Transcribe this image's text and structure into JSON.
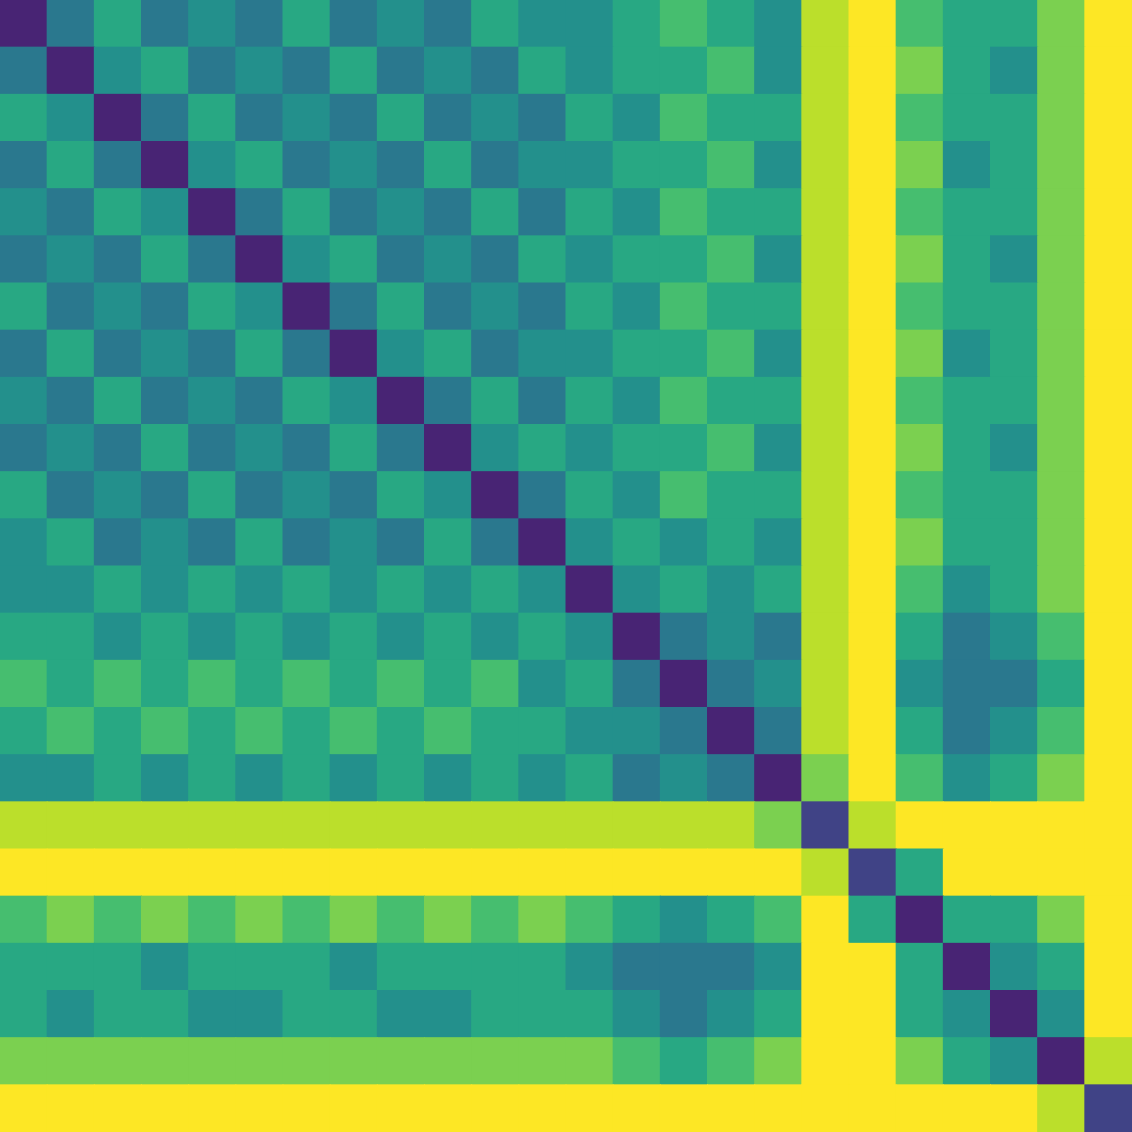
{
  "chart_data": {
    "type": "heatmap",
    "tick_labels": false,
    "xlim": [
      0,
      24
    ],
    "ylim": [
      0,
      24
    ],
    "zlim": [
      0,
      1
    ],
    "cells": [
      [
        0.1,
        0.4,
        0.6,
        0.4,
        0.5,
        0.4,
        0.6,
        0.4,
        0.5,
        0.4,
        0.6,
        0.5,
        0.5,
        0.6,
        0.7,
        0.6,
        0.5,
        0.9,
        1,
        0.7,
        0.6,
        0.6,
        0.8,
        1
      ],
      [
        0.4,
        0.1,
        0.5,
        0.6,
        0.4,
        0.5,
        0.4,
        0.6,
        0.4,
        0.5,
        0.4,
        0.6,
        0.5,
        0.6,
        0.6,
        0.7,
        0.5,
        0.9,
        1,
        0.8,
        0.6,
        0.5,
        0.8,
        1
      ],
      [
        0.6,
        0.5,
        0.1,
        0.4,
        0.6,
        0.4,
        0.5,
        0.4,
        0.6,
        0.4,
        0.5,
        0.4,
        0.6,
        0.5,
        0.7,
        0.6,
        0.6,
        0.9,
        1,
        0.7,
        0.6,
        0.6,
        0.8,
        1
      ],
      [
        0.4,
        0.6,
        0.4,
        0.1,
        0.5,
        0.6,
        0.4,
        0.5,
        0.4,
        0.6,
        0.4,
        0.5,
        0.5,
        0.6,
        0.6,
        0.7,
        0.5,
        0.9,
        1,
        0.8,
        0.5,
        0.6,
        0.8,
        1
      ],
      [
        0.5,
        0.4,
        0.6,
        0.5,
        0.1,
        0.4,
        0.6,
        0.4,
        0.5,
        0.4,
        0.6,
        0.4,
        0.6,
        0.5,
        0.7,
        0.6,
        0.6,
        0.9,
        1,
        0.7,
        0.6,
        0.6,
        0.8,
        1
      ],
      [
        0.4,
        0.5,
        0.4,
        0.6,
        0.4,
        0.1,
        0.5,
        0.6,
        0.4,
        0.5,
        0.4,
        0.6,
        0.5,
        0.6,
        0.6,
        0.7,
        0.5,
        0.9,
        1,
        0.8,
        0.6,
        0.5,
        0.8,
        1
      ],
      [
        0.6,
        0.4,
        0.5,
        0.4,
        0.6,
        0.5,
        0.1,
        0.4,
        0.6,
        0.4,
        0.5,
        0.4,
        0.6,
        0.5,
        0.7,
        0.6,
        0.6,
        0.9,
        1,
        0.7,
        0.6,
        0.6,
        0.8,
        1
      ],
      [
        0.4,
        0.6,
        0.4,
        0.5,
        0.4,
        0.6,
        0.4,
        0.1,
        0.5,
        0.6,
        0.4,
        0.5,
        0.5,
        0.6,
        0.6,
        0.7,
        0.5,
        0.9,
        1,
        0.8,
        0.5,
        0.6,
        0.8,
        1
      ],
      [
        0.5,
        0.4,
        0.6,
        0.4,
        0.5,
        0.4,
        0.6,
        0.5,
        0.1,
        0.4,
        0.6,
        0.4,
        0.6,
        0.5,
        0.7,
        0.6,
        0.6,
        0.9,
        1,
        0.7,
        0.6,
        0.6,
        0.8,
        1
      ],
      [
        0.4,
        0.5,
        0.4,
        0.6,
        0.4,
        0.5,
        0.4,
        0.6,
        0.4,
        0.1,
        0.5,
        0.6,
        0.5,
        0.6,
        0.6,
        0.7,
        0.5,
        0.9,
        1,
        0.8,
        0.6,
        0.5,
        0.8,
        1
      ],
      [
        0.6,
        0.4,
        0.5,
        0.4,
        0.6,
        0.4,
        0.5,
        0.4,
        0.6,
        0.5,
        0.1,
        0.4,
        0.6,
        0.5,
        0.7,
        0.6,
        0.6,
        0.9,
        1,
        0.7,
        0.6,
        0.6,
        0.8,
        1
      ],
      [
        0.5,
        0.6,
        0.4,
        0.5,
        0.4,
        0.6,
        0.4,
        0.5,
        0.4,
        0.6,
        0.4,
        0.1,
        0.5,
        0.6,
        0.5,
        0.6,
        0.5,
        0.9,
        1,
        0.8,
        0.6,
        0.6,
        0.8,
        1
      ],
      [
        0.5,
        0.5,
        0.6,
        0.5,
        0.6,
        0.5,
        0.6,
        0.5,
        0.6,
        0.5,
        0.6,
        0.5,
        0.1,
        0.5,
        0.6,
        0.5,
        0.6,
        0.9,
        1,
        0.7,
        0.5,
        0.6,
        0.8,
        1
      ],
      [
        0.6,
        0.6,
        0.5,
        0.6,
        0.5,
        0.6,
        0.5,
        0.6,
        0.5,
        0.6,
        0.5,
        0.6,
        0.5,
        0.1,
        0.4,
        0.5,
        0.4,
        0.9,
        1,
        0.6,
        0.4,
        0.5,
        0.7,
        1
      ],
      [
        0.7,
        0.6,
        0.7,
        0.6,
        0.7,
        0.6,
        0.7,
        0.6,
        0.7,
        0.6,
        0.7,
        0.5,
        0.6,
        0.4,
        0.1,
        0.4,
        0.5,
        0.9,
        1,
        0.5,
        0.4,
        0.4,
        0.6,
        1
      ],
      [
        0.6,
        0.7,
        0.6,
        0.7,
        0.6,
        0.7,
        0.6,
        0.7,
        0.6,
        0.7,
        0.6,
        0.6,
        0.5,
        0.5,
        0.4,
        0.1,
        0.4,
        0.9,
        1,
        0.6,
        0.4,
        0.5,
        0.7,
        1
      ],
      [
        0.5,
        0.5,
        0.6,
        0.5,
        0.6,
        0.5,
        0.6,
        0.5,
        0.6,
        0.5,
        0.6,
        0.5,
        0.6,
        0.4,
        0.5,
        0.4,
        0.1,
        0.8,
        1,
        0.7,
        0.5,
        0.6,
        0.8,
        1
      ],
      [
        0.9,
        0.9,
        0.9,
        0.9,
        0.9,
        0.9,
        0.9,
        0.9,
        0.9,
        0.9,
        0.9,
        0.9,
        0.9,
        0.9,
        0.9,
        0.9,
        0.8,
        0.2,
        0.9,
        1,
        1,
        1,
        1,
        1
      ],
      [
        1,
        1,
        1,
        1,
        1,
        1,
        1,
        1,
        1,
        1,
        1,
        1,
        1,
        1,
        1,
        1,
        1,
        0.9,
        0.2,
        0.6,
        1,
        1,
        1,
        1
      ],
      [
        0.7,
        0.8,
        0.7,
        0.8,
        0.7,
        0.8,
        0.7,
        0.8,
        0.7,
        0.8,
        0.7,
        0.8,
        0.7,
        0.6,
        0.5,
        0.6,
        0.7,
        1,
        0.6,
        0.1,
        0.6,
        0.6,
        0.8,
        1
      ],
      [
        0.6,
        0.6,
        0.6,
        0.5,
        0.6,
        0.6,
        0.6,
        0.5,
        0.6,
        0.6,
        0.6,
        0.6,
        0.5,
        0.4,
        0.4,
        0.4,
        0.5,
        1,
        1,
        0.6,
        0.1,
        0.5,
        0.6,
        1
      ],
      [
        0.6,
        0.5,
        0.6,
        0.6,
        0.5,
        0.5,
        0.6,
        0.6,
        0.5,
        0.5,
        0.6,
        0.6,
        0.6,
        0.5,
        0.4,
        0.5,
        0.6,
        1,
        1,
        0.6,
        0.5,
        0.1,
        0.5,
        1
      ],
      [
        0.8,
        0.8,
        0.8,
        0.8,
        0.8,
        0.8,
        0.8,
        0.8,
        0.8,
        0.8,
        0.8,
        0.8,
        0.8,
        0.7,
        0.6,
        0.7,
        0.8,
        1,
        1,
        0.8,
        0.6,
        0.5,
        0.1,
        0.9
      ],
      [
        1,
        1,
        1,
        1,
        1,
        1,
        1,
        1,
        1,
        1,
        1,
        1,
        1,
        1,
        1,
        1,
        1,
        1,
        1,
        1,
        1,
        1,
        0.9,
        0.2
      ]
    ]
  }
}
